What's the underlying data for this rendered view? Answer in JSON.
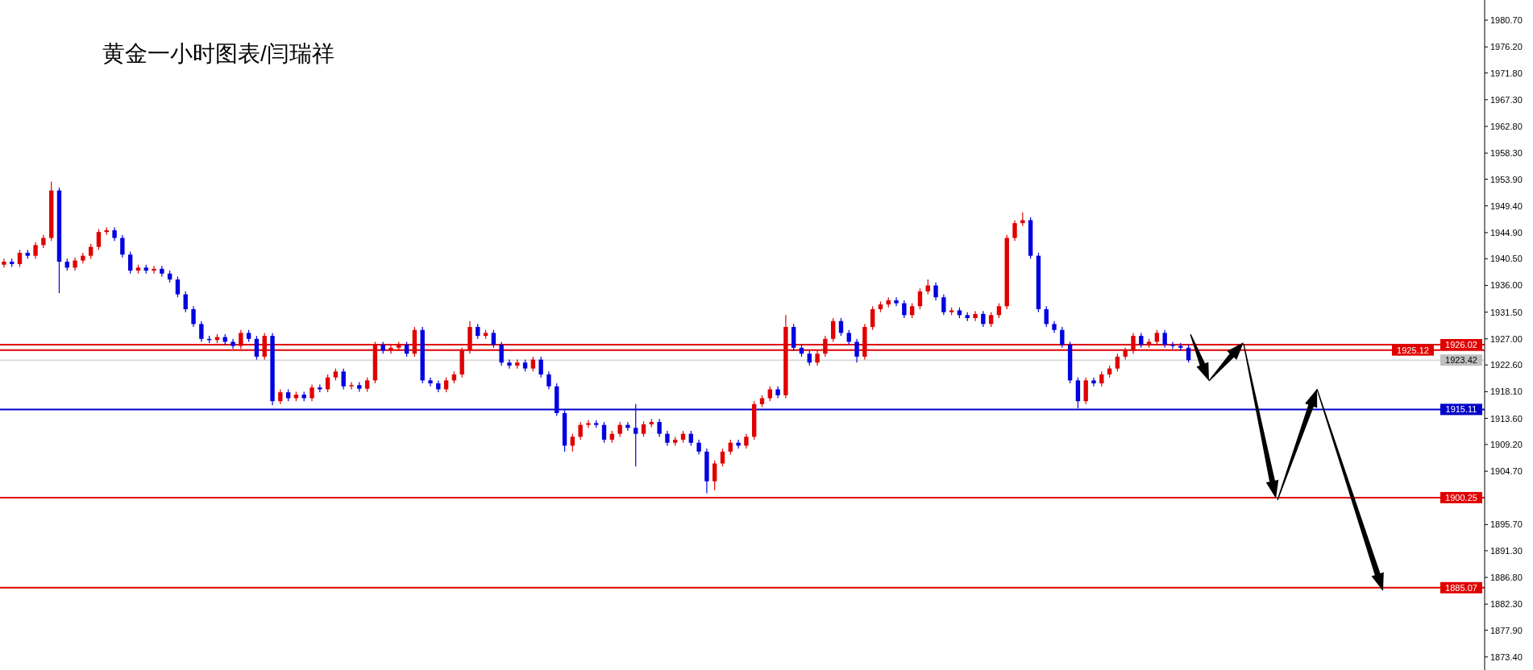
{
  "chart_data": {
    "type": "candlestick",
    "title": "黄金一小时图表/闫瑞祥",
    "categories": [
      null,
      null,
      null,
      null,
      null,
      null,
      null,
      null,
      null,
      null,
      null,
      null,
      null,
      null,
      null,
      null,
      null,
      null,
      null,
      null,
      null,
      null,
      null,
      null,
      null,
      null,
      null,
      null,
      null,
      null,
      null,
      null,
      null,
      null,
      null,
      null,
      null,
      null,
      null,
      null,
      null,
      null,
      null,
      null,
      null,
      null,
      null,
      null,
      null,
      null,
      null,
      null,
      null,
      null,
      null,
      null,
      null,
      null,
      null,
      null,
      null,
      null,
      null,
      null,
      null,
      null,
      null,
      null,
      null,
      null,
      null,
      null,
      null,
      null,
      null,
      null,
      null,
      null,
      null,
      null,
      null,
      null,
      null,
      null,
      null,
      null,
      null,
      null,
      null,
      null,
      null,
      null,
      null,
      null,
      null,
      null,
      null,
      null,
      null,
      null,
      null,
      null,
      null,
      null,
      null,
      null,
      null,
      null,
      null,
      null,
      null,
      null,
      null,
      null,
      null,
      null,
      null,
      null,
      null,
      null,
      null,
      null,
      null,
      null,
      null,
      null,
      null,
      null,
      null,
      null,
      null,
      null,
      null,
      null,
      null,
      null,
      null,
      null,
      null,
      null,
      null,
      null,
      null,
      null,
      null,
      null,
      null,
      null,
      null,
      null,
      null,
      null,
      null,
      null,
      null,
      null,
      null,
      null,
      null,
      null,
      null,
      null,
      null,
      null,
      null,
      null,
      null,
      null,
      null,
      null,
      null,
      null,
      null,
      null,
      null,
      null,
      null,
      null,
      null,
      null,
      null,
      null,
      null,
      null,
      null,
      null,
      null,
      null
    ],
    "ohlc": [
      [
        1939.5,
        1940.5,
        1939.0,
        1940.0
      ],
      [
        1940.0,
        1940.5,
        1939.1,
        1939.6
      ],
      [
        1939.6,
        1942.0,
        1939.1,
        1941.5
      ],
      [
        1941.5,
        1942.0,
        1940.5,
        1941.0
      ],
      [
        1941.0,
        1943.3,
        1940.5,
        1942.8
      ],
      [
        1942.8,
        1944.5,
        1942.3,
        1944.0
      ],
      [
        1944.0,
        1953.5,
        1943.5,
        1952.0
      ],
      [
        1952.0,
        1952.5,
        1934.7,
        1940.0
      ],
      [
        1940.0,
        1940.5,
        1938.5,
        1939.0
      ],
      [
        1939.0,
        1940.7,
        1938.5,
        1940.2
      ],
      [
        1940.2,
        1941.5,
        1939.7,
        1941.0
      ],
      [
        1941.0,
        1943.0,
        1940.5,
        1942.5
      ],
      [
        1942.5,
        1945.5,
        1942.0,
        1945.0
      ],
      [
        1945.0,
        1945.8,
        1944.5,
        1945.3
      ],
      [
        1945.3,
        1945.8,
        1943.5,
        1944.0
      ],
      [
        1944.0,
        1944.5,
        1940.7,
        1941.2
      ],
      [
        1941.2,
        1941.7,
        1938.0,
        1938.5
      ],
      [
        1938.5,
        1939.5,
        1938.0,
        1939.0
      ],
      [
        1939.0,
        1939.5,
        1938.0,
        1938.5
      ],
      [
        1938.5,
        1939.3,
        1938.0,
        1938.8
      ],
      [
        1938.8,
        1939.3,
        1937.5,
        1938.0
      ],
      [
        1938.0,
        1938.5,
        1936.5,
        1937.0
      ],
      [
        1937.0,
        1937.5,
        1934.0,
        1934.5
      ],
      [
        1934.5,
        1935.0,
        1931.5,
        1932.0
      ],
      [
        1932.0,
        1932.5,
        1929.0,
        1929.5
      ],
      [
        1929.5,
        1930.0,
        1926.5,
        1927.0
      ],
      [
        1927.0,
        1927.5,
        1926.3,
        1926.8
      ],
      [
        1926.8,
        1927.8,
        1926.3,
        1927.3
      ],
      [
        1927.3,
        1927.8,
        1926.0,
        1926.5
      ],
      [
        1926.5,
        1927.0,
        1925.3,
        1925.8
      ],
      [
        1925.8,
        1928.5,
        1925.3,
        1928.0
      ],
      [
        1928.0,
        1928.5,
        1926.5,
        1927.0
      ],
      [
        1927.0,
        1927.5,
        1923.5,
        1924.0
      ],
      [
        1924.0,
        1928.0,
        1923.5,
        1927.5
      ],
      [
        1927.5,
        1928.0,
        1915.8,
        1916.5
      ],
      [
        1916.5,
        1918.5,
        1916.0,
        1918.0
      ],
      [
        1918.0,
        1918.5,
        1916.5,
        1917.0
      ],
      [
        1917.0,
        1918.1,
        1916.5,
        1917.6
      ],
      [
        1917.6,
        1918.1,
        1916.5,
        1917.0
      ],
      [
        1917.0,
        1919.3,
        1916.5,
        1918.8
      ],
      [
        1918.8,
        1919.3,
        1918.0,
        1918.5
      ],
      [
        1918.5,
        1921.0,
        1918.0,
        1920.5
      ],
      [
        1920.5,
        1922.0,
        1920.0,
        1921.5
      ],
      [
        1921.5,
        1922.0,
        1918.5,
        1919.0
      ],
      [
        1919.0,
        1919.7,
        1918.5,
        1919.2
      ],
      [
        1919.2,
        1919.7,
        1918.1,
        1918.6
      ],
      [
        1918.6,
        1920.5,
        1918.1,
        1920.0
      ],
      [
        1920.0,
        1926.5,
        1919.5,
        1926.0
      ],
      [
        1926.0,
        1926.5,
        1924.5,
        1925.0
      ],
      [
        1925.0,
        1926.0,
        1924.5,
        1925.5
      ],
      [
        1925.5,
        1926.5,
        1925.0,
        1926.0
      ],
      [
        1926.0,
        1926.5,
        1924.0,
        1924.5
      ],
      [
        1924.5,
        1929.0,
        1924.0,
        1928.5
      ],
      [
        1928.5,
        1929.0,
        1919.5,
        1920.0
      ],
      [
        1920.0,
        1920.5,
        1919.0,
        1919.5
      ],
      [
        1919.5,
        1920.0,
        1918.0,
        1918.5
      ],
      [
        1918.5,
        1920.5,
        1918.0,
        1920.0
      ],
      [
        1920.0,
        1921.5,
        1919.5,
        1921.0
      ],
      [
        1921.0,
        1925.5,
        1920.5,
        1925.0
      ],
      [
        1925.0,
        1930.0,
        1924.5,
        1929.0
      ],
      [
        1929.0,
        1929.5,
        1927.0,
        1927.5
      ],
      [
        1927.5,
        1928.5,
        1927.0,
        1928.0
      ],
      [
        1928.0,
        1928.5,
        1925.5,
        1926.0
      ],
      [
        1926.0,
        1926.5,
        1922.5,
        1923.0
      ],
      [
        1923.0,
        1923.5,
        1922.0,
        1922.5
      ],
      [
        1922.5,
        1923.5,
        1922.0,
        1923.0
      ],
      [
        1923.0,
        1923.5,
        1921.5,
        1922.0
      ],
      [
        1922.0,
        1924.0,
        1921.5,
        1923.5
      ],
      [
        1923.5,
        1924.0,
        1920.5,
        1921.0
      ],
      [
        1921.0,
        1921.5,
        1918.5,
        1919.0
      ],
      [
        1919.0,
        1919.5,
        1914.0,
        1914.5
      ],
      [
        1914.5,
        1915.0,
        1908.0,
        1909.0
      ],
      [
        1909.0,
        1911.0,
        1908.0,
        1910.5
      ],
      [
        1910.5,
        1913.0,
        1910.0,
        1912.5
      ],
      [
        1912.5,
        1913.3,
        1912.0,
        1912.8
      ],
      [
        1912.8,
        1913.3,
        1912.0,
        1912.5
      ],
      [
        1912.5,
        1913.0,
        1909.5,
        1910.0
      ],
      [
        1910.0,
        1911.5,
        1909.5,
        1911.0
      ],
      [
        1911.0,
        1913.0,
        1910.5,
        1912.5
      ],
      [
        1912.5,
        1913.0,
        1911.5,
        1912.0
      ],
      [
        1912.0,
        1916.0,
        1905.5,
        1911.0
      ],
      [
        1911.0,
        1913.1,
        1910.5,
        1912.6
      ],
      [
        1912.6,
        1913.5,
        1912.1,
        1913.0
      ],
      [
        1913.0,
        1913.5,
        1910.5,
        1911.0
      ],
      [
        1911.0,
        1911.5,
        1909.0,
        1909.5
      ],
      [
        1909.5,
        1910.5,
        1909.0,
        1910.0
      ],
      [
        1910.0,
        1911.5,
        1909.5,
        1911.0
      ],
      [
        1911.0,
        1911.5,
        1909.0,
        1909.5
      ],
      [
        1909.5,
        1910.0,
        1907.5,
        1908.0
      ],
      [
        1908.0,
        1908.5,
        1901.0,
        1903.0
      ],
      [
        1903.0,
        1906.5,
        1901.5,
        1906.0
      ],
      [
        1906.0,
        1908.5,
        1905.5,
        1908.0
      ],
      [
        1908.0,
        1910.0,
        1907.5,
        1909.5
      ],
      [
        1909.5,
        1910.0,
        1908.5,
        1909.0
      ],
      [
        1909.0,
        1911.0,
        1908.5,
        1910.5
      ],
      [
        1910.5,
        1916.5,
        1910.0,
        1916.0
      ],
      [
        1916.0,
        1917.5,
        1915.5,
        1917.0
      ],
      [
        1917.0,
        1919.0,
        1916.5,
        1918.5
      ],
      [
        1918.5,
        1919.0,
        1917.0,
        1917.5
      ],
      [
        1917.5,
        1931.0,
        1917.0,
        1929.0
      ],
      [
        1929.0,
        1929.5,
        1925.0,
        1925.5
      ],
      [
        1925.5,
        1926.0,
        1924.0,
        1924.5
      ],
      [
        1924.5,
        1925.0,
        1922.5,
        1923.0
      ],
      [
        1923.0,
        1925.0,
        1922.5,
        1924.5
      ],
      [
        1924.5,
        1927.5,
        1924.0,
        1927.0
      ],
      [
        1927.0,
        1930.5,
        1926.5,
        1930.0
      ],
      [
        1930.0,
        1930.5,
        1927.5,
        1928.0
      ],
      [
        1928.0,
        1928.5,
        1926.0,
        1926.5
      ],
      [
        1926.5,
        1927.0,
        1923.0,
        1924.0
      ],
      [
        1924.0,
        1929.5,
        1923.5,
        1929.0
      ],
      [
        1929.0,
        1932.5,
        1928.5,
        1932.0
      ],
      [
        1932.0,
        1933.3,
        1931.5,
        1932.8
      ],
      [
        1932.8,
        1934.0,
        1932.3,
        1933.5
      ],
      [
        1933.5,
        1934.0,
        1932.5,
        1933.0
      ],
      [
        1933.0,
        1933.5,
        1930.5,
        1931.0
      ],
      [
        1931.0,
        1933.0,
        1930.5,
        1932.5
      ],
      [
        1932.5,
        1935.5,
        1932.0,
        1935.0
      ],
      [
        1935.0,
        1937.0,
        1934.5,
        1936.0
      ],
      [
        1936.0,
        1936.5,
        1933.5,
        1934.0
      ],
      [
        1934.0,
        1934.5,
        1931.0,
        1931.5
      ],
      [
        1931.5,
        1932.3,
        1931.0,
        1931.8
      ],
      [
        1931.8,
        1932.3,
        1930.5,
        1931.0
      ],
      [
        1931.0,
        1931.5,
        1930.0,
        1930.5
      ],
      [
        1930.5,
        1931.7,
        1930.0,
        1931.2
      ],
      [
        1931.2,
        1931.7,
        1929.0,
        1929.5
      ],
      [
        1929.5,
        1931.5,
        1929.0,
        1931.0
      ],
      [
        1931.0,
        1933.0,
        1930.5,
        1932.5
      ],
      [
        1932.5,
        1944.5,
        1932.0,
        1944.0
      ],
      [
        1944.0,
        1947.0,
        1943.5,
        1946.5
      ],
      [
        1946.5,
        1948.3,
        1946.0,
        1947.0
      ],
      [
        1947.0,
        1947.5,
        1940.5,
        1941.0
      ],
      [
        1941.0,
        1941.5,
        1931.5,
        1932.0
      ],
      [
        1932.0,
        1932.5,
        1929.0,
        1929.5
      ],
      [
        1929.5,
        1930.0,
        1928.0,
        1928.5
      ],
      [
        1928.5,
        1929.0,
        1925.5,
        1926.0
      ],
      [
        1926.0,
        1926.5,
        1919.5,
        1920.0
      ],
      [
        1920.0,
        1920.5,
        1915.3,
        1916.5
      ],
      [
        1916.5,
        1920.5,
        1916.0,
        1920.0
      ],
      [
        1920.0,
        1920.5,
        1919.0,
        1919.5
      ],
      [
        1919.5,
        1921.5,
        1919.0,
        1921.0
      ],
      [
        1921.0,
        1922.5,
        1920.5,
        1922.0
      ],
      [
        1922.0,
        1924.5,
        1921.5,
        1924.0
      ],
      [
        1924.0,
        1925.5,
        1923.5,
        1925.0
      ],
      [
        1925.0,
        1928.0,
        1924.5,
        1927.5
      ],
      [
        1927.5,
        1928.0,
        1925.5,
        1926.0
      ],
      [
        1926.0,
        1927.0,
        1925.5,
        1926.5
      ],
      [
        1926.5,
        1928.5,
        1926.0,
        1928.0
      ],
      [
        1928.0,
        1928.5,
        1925.5,
        1926.0
      ],
      [
        1926.0,
        1926.5,
        1925.3,
        1925.8
      ],
      [
        1925.8,
        1926.3,
        1925.0,
        1925.5
      ],
      [
        1925.5,
        1926.0,
        1923.0,
        1923.4
      ],
      null,
      null,
      null,
      null,
      null,
      null,
      null,
      null,
      null,
      null,
      null,
      null,
      null,
      null,
      null,
      null,
      null,
      null,
      null,
      null,
      null,
      null,
      null,
      null,
      null,
      null,
      null,
      null,
      null,
      null,
      null,
      null,
      null,
      null,
      null,
      null,
      null
    ],
    "colors": [
      "#e00000",
      "#0000e0",
      "#e00000",
      "#0000e0",
      "#e00000",
      "#e00000",
      "#e00000",
      "#0000e0",
      "#0000e0",
      "#e00000",
      "#e00000",
      "#e00000",
      "#e00000",
      "#e00000",
      "#0000e0",
      "#0000e0",
      "#0000e0",
      "#e00000",
      "#0000e0",
      "#e00000",
      "#0000e0",
      "#0000e0",
      "#0000e0",
      "#0000e0",
      "#0000e0",
      "#0000e0",
      "#0000e0",
      "#e00000",
      "#0000e0",
      "#0000e0",
      "#e00000",
      "#0000e0",
      "#0000e0",
      "#e00000",
      "#0000e0",
      "#e00000",
      "#0000e0",
      "#e00000",
      "#0000e0",
      "#e00000",
      "#0000e0",
      "#e00000",
      "#e00000",
      "#0000e0",
      "#e00000",
      "#0000e0",
      "#e00000",
      "#e00000",
      "#0000e0",
      "#e00000",
      "#e00000",
      "#0000e0",
      "#e00000",
      "#0000e0",
      "#0000e0",
      "#0000e0",
      "#e00000",
      "#e00000",
      "#e00000",
      "#e00000",
      "#0000e0",
      "#e00000",
      "#0000e0",
      "#0000e0",
      "#0000e0",
      "#e00000",
      "#0000e0",
      "#e00000",
      "#0000e0",
      "#0000e0",
      "#0000e0",
      "#0000e0",
      "#e00000",
      "#e00000",
      "#e00000",
      "#0000e0",
      "#0000e0",
      "#e00000",
      "#e00000",
      "#0000e0",
      "#0000e0",
      "#e00000",
      "#e00000",
      "#0000e0",
      "#0000e0",
      "#e00000",
      "#e00000",
      "#0000e0",
      "#0000e0",
      "#0000e0",
      "#e00000",
      "#e00000",
      "#e00000",
      "#0000e0",
      "#e00000",
      "#e00000",
      "#e00000",
      "#e00000",
      "#0000e0",
      "#e00000",
      "#0000e0",
      "#0000e0",
      "#0000e0",
      "#e00000",
      "#e00000",
      "#e00000",
      "#0000e0",
      "#0000e0",
      "#0000e0",
      "#e00000",
      "#e00000",
      "#e00000",
      "#e00000",
      "#0000e0",
      "#0000e0",
      "#e00000",
      "#e00000",
      "#e00000",
      "#0000e0",
      "#0000e0",
      "#e00000",
      "#0000e0",
      "#0000e0",
      "#e00000",
      "#0000e0",
      "#e00000",
      "#e00000",
      "#e00000",
      "#e00000",
      "#e00000",
      "#0000e0",
      "#0000e0",
      "#0000e0",
      "#0000e0",
      "#0000e0",
      "#0000e0",
      "#0000e0",
      "#e00000",
      "#0000e0",
      "#e00000",
      "#e00000",
      "#e00000",
      "#e00000",
      "#e00000",
      "#0000e0",
      "#e00000",
      "#e00000",
      "#0000e0",
      "#0000e0",
      "#0000e0",
      "#0000e0",
      null,
      null,
      null,
      null,
      null,
      null,
      null,
      null,
      null,
      null,
      null,
      null,
      null,
      null,
      null,
      null,
      null,
      null,
      null,
      null,
      null,
      null,
      null,
      null,
      null,
      null,
      null,
      null,
      null,
      null,
      null,
      null,
      null,
      null,
      null,
      null,
      null
    ],
    "ylim": [
      1871.2,
      1984.1
    ],
    "yticks": [
      {
        "value": 1873.4,
        "label": "1873.40"
      },
      {
        "value": 1877.9,
        "label": "1877.90"
      },
      {
        "value": 1882.3,
        "label": "1882.30"
      },
      {
        "value": 1886.8,
        "label": "1886.80"
      },
      {
        "value": 1891.3,
        "label": "1891.30"
      },
      {
        "value": 1895.7,
        "label": "1895.70"
      },
      {
        "value": 1904.7,
        "label": "1904.70"
      },
      {
        "value": 1909.2,
        "label": "1909.20"
      },
      {
        "value": 1913.6,
        "label": "1913.60"
      },
      {
        "value": 1918.1,
        "label": "1918.10"
      },
      {
        "value": 1922.6,
        "label": "1922.60"
      },
      {
        "value": 1927,
        "label": "1927.00"
      },
      {
        "value": 1931.5,
        "label": "1931.50"
      },
      {
        "value": 1936,
        "label": "1936.00"
      },
      {
        "value": 1940.5,
        "label": "1940.50"
      },
      {
        "value": 1944.9,
        "label": "1944.90"
      },
      {
        "value": 1949.4,
        "label": "1949.40"
      },
      {
        "value": 1953.9,
        "label": "1953.90"
      },
      {
        "value": 1958.3,
        "label": "1958.30"
      },
      {
        "value": 1962.8,
        "label": "1962.80"
      },
      {
        "value": 1967.3,
        "label": "1967.30"
      },
      {
        "value": 1971.8,
        "label": "1971.80"
      },
      {
        "value": 1976.2,
        "label": "1976.20"
      },
      {
        "value": 1980.7,
        "label": "1980.70"
      }
    ],
    "tick_labels": "y",
    "ref_lines": [
      {
        "axis": "y",
        "value": 1926.02,
        "label": "1926.02",
        "color": "#e00000"
      },
      {
        "axis": "y",
        "value": 1925.12,
        "label": "1925.12",
        "color": "#e00000"
      },
      {
        "axis": "y",
        "value": 1923.42,
        "label": "1923.42",
        "color": "#c0c0c0"
      },
      {
        "axis": "y",
        "value": 1915.11,
        "label": "1915.11",
        "color": "#0000c8"
      },
      {
        "axis": "y",
        "value": 1900.25,
        "label": "1900.25",
        "color": "#e00000"
      },
      {
        "axis": "y",
        "value": 1885.07,
        "label": "1885.07",
        "color": "#e00000"
      }
    ]
  }
}
